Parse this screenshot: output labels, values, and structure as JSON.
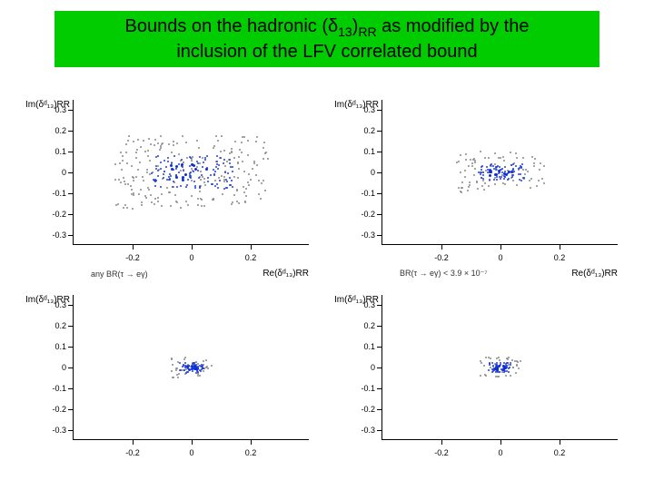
{
  "title": {
    "line1_prefix": "Bounds on the hadronic (",
    "delta": "δ",
    "sub13": "13",
    "line1_mid": ")",
    "subRR": "RR",
    "line1_suffix": " as modified by the",
    "line2": "inclusion of the LFV correlated bound",
    "background_color": "#00cc00",
    "text_color": "#000000"
  },
  "charts": {
    "layout": "2x2",
    "xlim": [
      -0.4,
      0.4
    ],
    "ylim": [
      -0.35,
      0.35
    ],
    "xticks": [
      -0.2,
      0,
      0.2
    ],
    "yticks": [
      -0.3,
      -0.2,
      -0.1,
      0,
      0.1,
      0.2,
      0.3
    ],
    "axis_color": "#000000",
    "tick_fontsize": 9,
    "label_fontsize": 10,
    "background": "#ffffff",
    "panels": [
      {
        "pos": "top-left",
        "yaxis": "Im(δᵈ₁₃)RR",
        "xaxis": "Re(δᵈ₁₃)RR",
        "subtitle": "any BR(τ → eγ)",
        "scatter_style": "wide",
        "core_color": "#2040e0",
        "halo_color": "#888888",
        "spread_x": [
          -0.28,
          0.28
        ],
        "spread_y": [
          -0.2,
          0.2
        ]
      },
      {
        "pos": "top-right",
        "yaxis": "Im(δᵈ₁₃)RR",
        "xaxis": "Re(δᵈ₁₃)RR",
        "subtitle": "BR(τ → eγ) < 3.9 × 10⁻⁷",
        "scatter_style": "medium",
        "core_color": "#2040e0",
        "halo_color": "#888888",
        "spread_x": [
          -0.15,
          0.18
        ],
        "spread_y": [
          -0.1,
          0.12
        ]
      },
      {
        "pos": "bottom-left",
        "yaxis": "Im(δᵈ₁₃)RR",
        "xaxis": "",
        "subtitle": "",
        "scatter_style": "tight",
        "core_color": "#2040e0",
        "halo_color": "#888888",
        "spread_x": [
          -0.08,
          0.08
        ],
        "spread_y": [
          -0.06,
          0.06
        ]
      },
      {
        "pos": "bottom-right",
        "yaxis": "Im(δᵈ₁₃)RR",
        "xaxis": "",
        "subtitle": "",
        "scatter_style": "tight",
        "core_color": "#2040e0",
        "halo_color": "#888888",
        "spread_x": [
          -0.07,
          0.07
        ],
        "spread_y": [
          -0.05,
          0.05
        ]
      }
    ]
  }
}
